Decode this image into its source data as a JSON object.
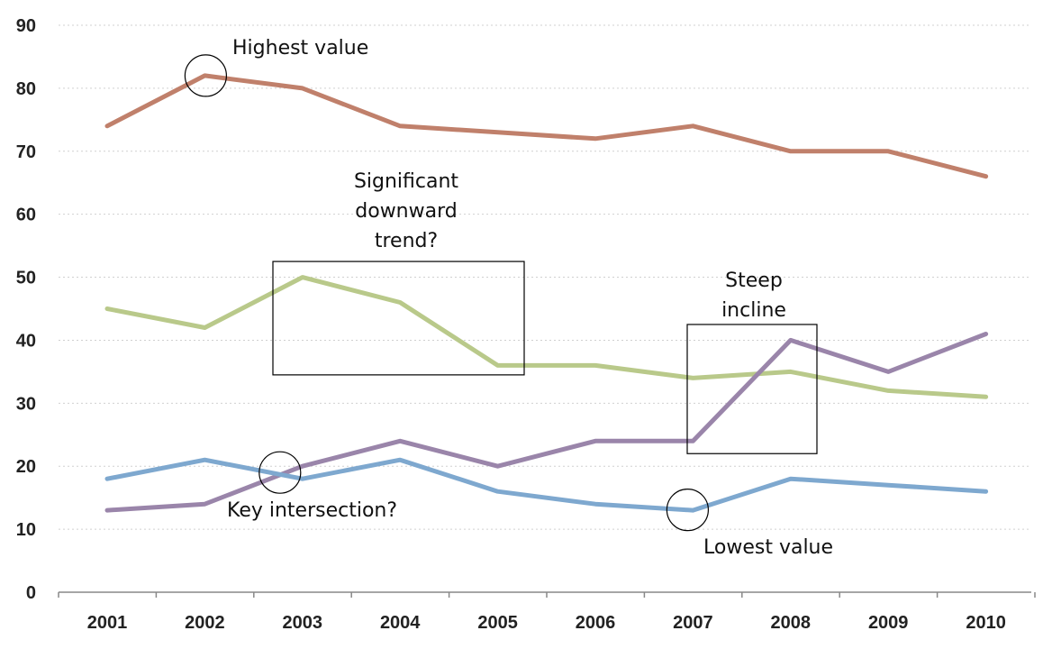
{
  "chart_data": {
    "type": "line",
    "title": "",
    "xlabel": "",
    "ylabel": "",
    "ylim": [
      0,
      90
    ],
    "yticks": [
      0,
      10,
      20,
      30,
      40,
      50,
      60,
      70,
      80,
      90
    ],
    "grid": true,
    "categories": [
      "2001",
      "2002",
      "2003",
      "2004",
      "2005",
      "2006",
      "2007",
      "2008",
      "2009",
      "2010"
    ],
    "series": [
      {
        "color": "#c0806b",
        "values": [
          74,
          82,
          80,
          74,
          73,
          72,
          74,
          70,
          70,
          66
        ]
      },
      {
        "color": "#b9c98a",
        "values": [
          45,
          42,
          50,
          46,
          36,
          36,
          34,
          35,
          32,
          31
        ]
      },
      {
        "color": "#9a85aa",
        "values": [
          13,
          14,
          20,
          24,
          20,
          24,
          24,
          40,
          35,
          41
        ]
      },
      {
        "color": "#7ea8cf",
        "values": [
          18,
          21,
          18,
          21,
          16,
          14,
          13,
          18,
          17,
          16
        ]
      }
    ],
    "annotations": [
      {
        "text": "Highest value",
        "shape": "circle",
        "at": [
          "2002",
          82
        ]
      },
      {
        "text": "Significant\ndownward\ntrend?",
        "shape": "box",
        "from": [
          "2003",
          52.5
        ],
        "to": [
          "2005",
          34.5
        ]
      },
      {
        "text": "Steep\nincline",
        "shape": "box",
        "from": [
          "2007",
          42.5
        ],
        "to": [
          "2008",
          22
        ]
      },
      {
        "text": "Key intersection?",
        "shape": "circle",
        "at": [
          "2003",
          19
        ]
      },
      {
        "text": "Lowest value",
        "shape": "circle",
        "at": [
          "2007",
          13.5
        ]
      }
    ]
  }
}
